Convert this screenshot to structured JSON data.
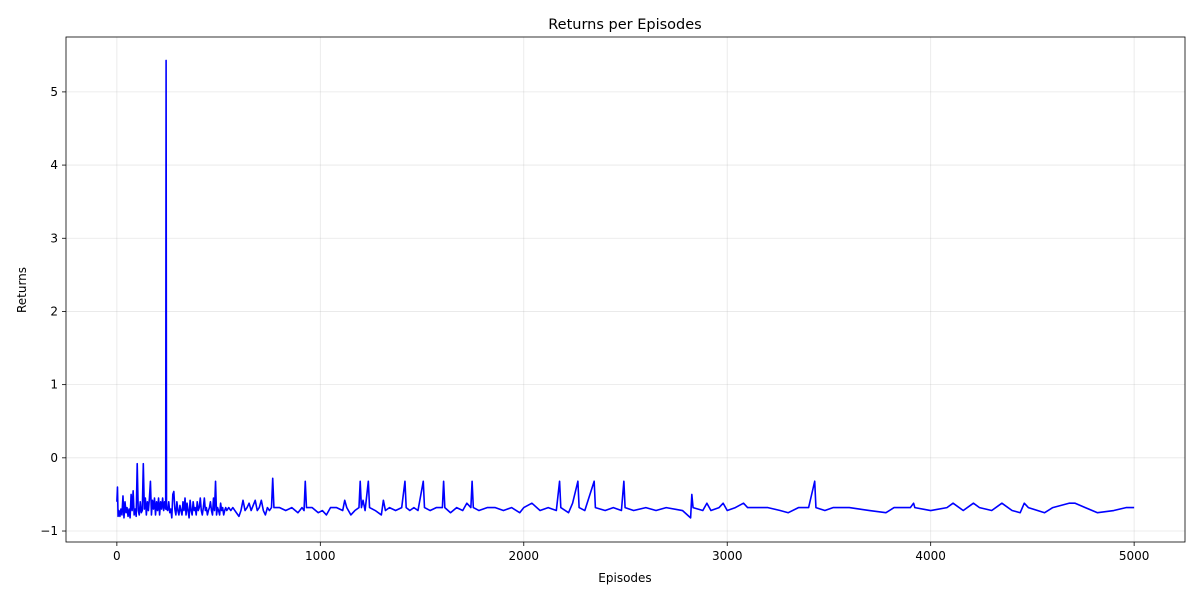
{
  "chart_data": {
    "type": "line",
    "title": "Returns per Episodes",
    "xlabel": "Episodes",
    "ylabel": "Returns",
    "xlim": [
      -250,
      5250
    ],
    "ylim": [
      -1.15,
      5.75
    ],
    "x_ticks": [
      0,
      1000,
      2000,
      3000,
      4000,
      5000
    ],
    "y_ticks": [
      -1,
      0,
      1,
      2,
      3,
      4,
      5
    ],
    "grid": true,
    "line_color": "#0000ff",
    "baseline": -0.68,
    "series": [
      {
        "points": [
          [
            0,
            -0.6
          ],
          [
            3,
            -0.4
          ],
          [
            6,
            -0.8
          ],
          [
            10,
            -0.72
          ],
          [
            15,
            -0.8
          ],
          [
            20,
            -0.7
          ],
          [
            25,
            -0.78
          ],
          [
            30,
            -0.52
          ],
          [
            35,
            -0.82
          ],
          [
            40,
            -0.6
          ],
          [
            45,
            -0.75
          ],
          [
            50,
            -0.68
          ],
          [
            55,
            -0.8
          ],
          [
            60,
            -0.7
          ],
          [
            65,
            -0.82
          ],
          [
            70,
            -0.5
          ],
          [
            75,
            -0.72
          ],
          [
            80,
            -0.45
          ],
          [
            85,
            -0.78
          ],
          [
            90,
            -0.7
          ],
          [
            95,
            -0.8
          ],
          [
            100,
            -0.08
          ],
          [
            105,
            -0.72
          ],
          [
            110,
            -0.78
          ],
          [
            115,
            -0.6
          ],
          [
            120,
            -0.75
          ],
          [
            125,
            -0.72
          ],
          [
            130,
            -0.08
          ],
          [
            135,
            -0.7
          ],
          [
            140,
            -0.55
          ],
          [
            145,
            -0.78
          ],
          [
            150,
            -0.6
          ],
          [
            155,
            -0.72
          ],
          [
            160,
            -0.55
          ],
          [
            165,
            -0.32
          ],
          [
            170,
            -0.78
          ],
          [
            175,
            -0.58
          ],
          [
            180,
            -0.7
          ],
          [
            185,
            -0.55
          ],
          [
            190,
            -0.78
          ],
          [
            195,
            -0.6
          ],
          [
            200,
            -0.72
          ],
          [
            205,
            -0.55
          ],
          [
            210,
            -0.78
          ],
          [
            215,
            -0.6
          ],
          [
            220,
            -0.7
          ],
          [
            225,
            -0.55
          ],
          [
            230,
            -0.72
          ],
          [
            235,
            -0.6
          ],
          [
            240,
            -0.7
          ],
          [
            242,
            5.43
          ],
          [
            244,
            -0.7
          ],
          [
            250,
            -0.72
          ],
          [
            255,
            -0.6
          ],
          [
            260,
            -0.75
          ],
          [
            265,
            -0.7
          ],
          [
            270,
            -0.82
          ],
          [
            275,
            -0.5
          ],
          [
            280,
            -0.46
          ],
          [
            285,
            -0.7
          ],
          [
            290,
            -0.78
          ],
          [
            295,
            -0.6
          ],
          [
            300,
            -0.72
          ],
          [
            305,
            -0.78
          ],
          [
            310,
            -0.65
          ],
          [
            315,
            -0.72
          ],
          [
            320,
            -0.78
          ],
          [
            325,
            -0.6
          ],
          [
            330,
            -0.72
          ],
          [
            335,
            -0.55
          ],
          [
            340,
            -0.78
          ],
          [
            345,
            -0.62
          ],
          [
            350,
            -0.72
          ],
          [
            355,
            -0.82
          ],
          [
            360,
            -0.58
          ],
          [
            365,
            -0.72
          ],
          [
            370,
            -0.78
          ],
          [
            375,
            -0.6
          ],
          [
            380,
            -0.72
          ],
          [
            385,
            -0.68
          ],
          [
            390,
            -0.78
          ],
          [
            395,
            -0.6
          ],
          [
            400,
            -0.72
          ],
          [
            405,
            -0.68
          ],
          [
            410,
            -0.55
          ],
          [
            415,
            -0.72
          ],
          [
            420,
            -0.78
          ],
          [
            425,
            -0.68
          ],
          [
            430,
            -0.55
          ],
          [
            435,
            -0.72
          ],
          [
            440,
            -0.68
          ],
          [
            445,
            -0.78
          ],
          [
            450,
            -0.72
          ],
          [
            455,
            -0.68
          ],
          [
            460,
            -0.6
          ],
          [
            465,
            -0.72
          ],
          [
            470,
            -0.78
          ],
          [
            475,
            -0.55
          ],
          [
            480,
            -0.72
          ],
          [
            485,
            -0.32
          ],
          [
            490,
            -0.78
          ],
          [
            495,
            -0.68
          ],
          [
            500,
            -0.72
          ],
          [
            505,
            -0.78
          ],
          [
            510,
            -0.62
          ],
          [
            515,
            -0.72
          ],
          [
            520,
            -0.68
          ],
          [
            525,
            -0.78
          ],
          [
            530,
            -0.72
          ],
          [
            535,
            -0.68
          ],
          [
            540,
            -0.72
          ],
          [
            550,
            -0.68
          ],
          [
            560,
            -0.72
          ],
          [
            570,
            -0.68
          ],
          [
            580,
            -0.72
          ],
          [
            600,
            -0.8
          ],
          [
            610,
            -0.72
          ],
          [
            620,
            -0.58
          ],
          [
            630,
            -0.72
          ],
          [
            640,
            -0.68
          ],
          [
            650,
            -0.62
          ],
          [
            660,
            -0.72
          ],
          [
            680,
            -0.58
          ],
          [
            690,
            -0.72
          ],
          [
            700,
            -0.68
          ],
          [
            710,
            -0.58
          ],
          [
            720,
            -0.72
          ],
          [
            730,
            -0.78
          ],
          [
            740,
            -0.68
          ],
          [
            750,
            -0.72
          ],
          [
            760,
            -0.68
          ],
          [
            766,
            -0.28
          ],
          [
            772,
            -0.68
          ],
          [
            800,
            -0.68
          ],
          [
            830,
            -0.72
          ],
          [
            860,
            -0.68
          ],
          [
            890,
            -0.75
          ],
          [
            910,
            -0.68
          ],
          [
            920,
            -0.72
          ],
          [
            926,
            -0.32
          ],
          [
            932,
            -0.68
          ],
          [
            960,
            -0.68
          ],
          [
            990,
            -0.75
          ],
          [
            1010,
            -0.72
          ],
          [
            1030,
            -0.78
          ],
          [
            1050,
            -0.68
          ],
          [
            1080,
            -0.68
          ],
          [
            1110,
            -0.72
          ],
          [
            1120,
            -0.58
          ],
          [
            1130,
            -0.68
          ],
          [
            1150,
            -0.78
          ],
          [
            1170,
            -0.72
          ],
          [
            1190,
            -0.68
          ],
          [
            1196,
            -0.32
          ],
          [
            1202,
            -0.68
          ],
          [
            1210,
            -0.58
          ],
          [
            1220,
            -0.72
          ],
          [
            1236,
            -0.32
          ],
          [
            1242,
            -0.68
          ],
          [
            1270,
            -0.72
          ],
          [
            1300,
            -0.78
          ],
          [
            1310,
            -0.58
          ],
          [
            1320,
            -0.72
          ],
          [
            1340,
            -0.68
          ],
          [
            1370,
            -0.72
          ],
          [
            1400,
            -0.68
          ],
          [
            1416,
            -0.32
          ],
          [
            1422,
            -0.68
          ],
          [
            1440,
            -0.72
          ],
          [
            1460,
            -0.68
          ],
          [
            1480,
            -0.72
          ],
          [
            1506,
            -0.32
          ],
          [
            1512,
            -0.68
          ],
          [
            1540,
            -0.72
          ],
          [
            1570,
            -0.68
          ],
          [
            1600,
            -0.68
          ],
          [
            1606,
            -0.32
          ],
          [
            1612,
            -0.68
          ],
          [
            1640,
            -0.75
          ],
          [
            1670,
            -0.68
          ],
          [
            1700,
            -0.72
          ],
          [
            1720,
            -0.62
          ],
          [
            1740,
            -0.68
          ],
          [
            1746,
            -0.32
          ],
          [
            1752,
            -0.68
          ],
          [
            1780,
            -0.72
          ],
          [
            1820,
            -0.68
          ],
          [
            1860,
            -0.68
          ],
          [
            1900,
            -0.72
          ],
          [
            1940,
            -0.68
          ],
          [
            1980,
            -0.75
          ],
          [
            2000,
            -0.68
          ],
          [
            2040,
            -0.62
          ],
          [
            2080,
            -0.72
          ],
          [
            2120,
            -0.68
          ],
          [
            2160,
            -0.72
          ],
          [
            2176,
            -0.32
          ],
          [
            2182,
            -0.68
          ],
          [
            2220,
            -0.75
          ],
          [
            2240,
            -0.62
          ],
          [
            2266,
            -0.32
          ],
          [
            2272,
            -0.68
          ],
          [
            2300,
            -0.72
          ],
          [
            2346,
            -0.32
          ],
          [
            2352,
            -0.68
          ],
          [
            2400,
            -0.72
          ],
          [
            2440,
            -0.68
          ],
          [
            2480,
            -0.72
          ],
          [
            2492,
            -0.32
          ],
          [
            2498,
            -0.68
          ],
          [
            2540,
            -0.72
          ],
          [
            2600,
            -0.68
          ],
          [
            2650,
            -0.72
          ],
          [
            2700,
            -0.68
          ],
          [
            2780,
            -0.72
          ],
          [
            2820,
            -0.82
          ],
          [
            2826,
            -0.5
          ],
          [
            2832,
            -0.68
          ],
          [
            2880,
            -0.72
          ],
          [
            2900,
            -0.62
          ],
          [
            2920,
            -0.72
          ],
          [
            2960,
            -0.68
          ],
          [
            2980,
            -0.62
          ],
          [
            3000,
            -0.72
          ],
          [
            3040,
            -0.68
          ],
          [
            3080,
            -0.62
          ],
          [
            3100,
            -0.68
          ],
          [
            3200,
            -0.68
          ],
          [
            3260,
            -0.72
          ],
          [
            3300,
            -0.75
          ],
          [
            3350,
            -0.68
          ],
          [
            3400,
            -0.68
          ],
          [
            3430,
            -0.32
          ],
          [
            3436,
            -0.68
          ],
          [
            3480,
            -0.72
          ],
          [
            3520,
            -0.68
          ],
          [
            3600,
            -0.68
          ],
          [
            3700,
            -0.72
          ],
          [
            3780,
            -0.75
          ],
          [
            3820,
            -0.68
          ],
          [
            3900,
            -0.68
          ],
          [
            3916,
            -0.62
          ],
          [
            3922,
            -0.68
          ],
          [
            4000,
            -0.72
          ],
          [
            4080,
            -0.68
          ],
          [
            4110,
            -0.62
          ],
          [
            4160,
            -0.72
          ],
          [
            4210,
            -0.62
          ],
          [
            4240,
            -0.68
          ],
          [
            4300,
            -0.72
          ],
          [
            4350,
            -0.62
          ],
          [
            4400,
            -0.72
          ],
          [
            4440,
            -0.75
          ],
          [
            4460,
            -0.62
          ],
          [
            4480,
            -0.68
          ],
          [
            4560,
            -0.75
          ],
          [
            4600,
            -0.68
          ],
          [
            4680,
            -0.62
          ],
          [
            4710,
            -0.62
          ],
          [
            4760,
            -0.68
          ],
          [
            4820,
            -0.75
          ],
          [
            4900,
            -0.72
          ],
          [
            4960,
            -0.68
          ],
          [
            5000,
            -0.68
          ]
        ]
      }
    ]
  }
}
